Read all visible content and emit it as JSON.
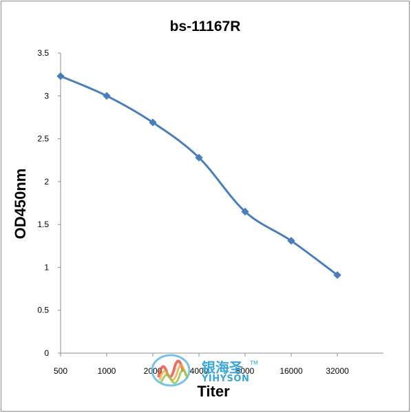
{
  "chart_data": {
    "type": "line",
    "title": "bs-11167R",
    "xlabel": "Titer",
    "ylabel": "OD450nm",
    "categories": [
      "500",
      "1000",
      "2000",
      "4000",
      "8000",
      "16000",
      "32000"
    ],
    "series": [
      {
        "values": [
          3.23,
          3.0,
          2.69,
          2.28,
          1.65,
          1.31,
          0.91
        ]
      }
    ],
    "ylim": [
      0,
      3.5
    ],
    "yticks": [
      "0",
      "0.5",
      "1",
      "1.5",
      "2",
      "2.5",
      "3",
      "3.5"
    ],
    "grid": false,
    "legend": "none",
    "line_color": "#4a7ebb"
  },
  "watermark": {
    "cn": "银海圣",
    "en": "YIHYSON",
    "tm": "TM"
  }
}
